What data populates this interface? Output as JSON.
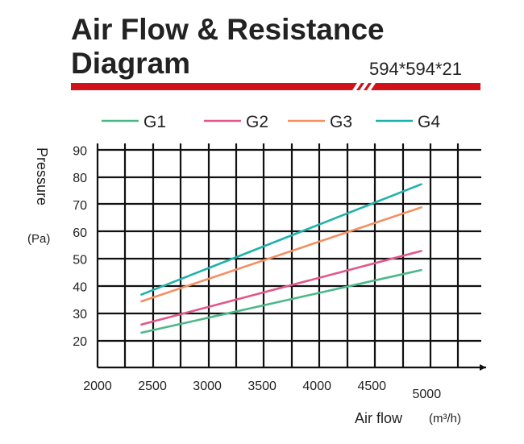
{
  "header": {
    "title_line1": "Air Flow & Resistance",
    "title_line2": "Diagram",
    "spec": "594*594*21",
    "accent_color": "#d0121b"
  },
  "chart_data": {
    "type": "line",
    "title": "Air Flow & Resistance Diagram",
    "xlabel": "Air flow",
    "xunit": "(m³/h)",
    "ylabel": "Pressure",
    "yunit": "(Pa)",
    "x_ticks": [
      "2000",
      "2500",
      "3000",
      "3500",
      "4000",
      "4500",
      "5000"
    ],
    "y_ticks": [
      "20",
      "30",
      "40",
      "50",
      "60",
      "70",
      "80",
      "90"
    ],
    "xlim": [
      2000,
      5000
    ],
    "ylim": [
      20,
      90
    ],
    "grid": true,
    "legend_position": "top",
    "series": [
      {
        "name": "G1",
        "color": "#4cb88a",
        "x": [
          2400,
          4950
        ],
        "y": [
          23,
          46
        ]
      },
      {
        "name": "G2",
        "color": "#e0588a",
        "x": [
          2400,
          4950
        ],
        "y": [
          26,
          53
        ]
      },
      {
        "name": "G3",
        "color": "#f29063",
        "x": [
          2400,
          4950
        ],
        "y": [
          34.5,
          69
        ]
      },
      {
        "name": "G4",
        "color": "#1fb2a8",
        "x": [
          2400,
          4950
        ],
        "y": [
          37,
          77.5
        ]
      }
    ]
  }
}
